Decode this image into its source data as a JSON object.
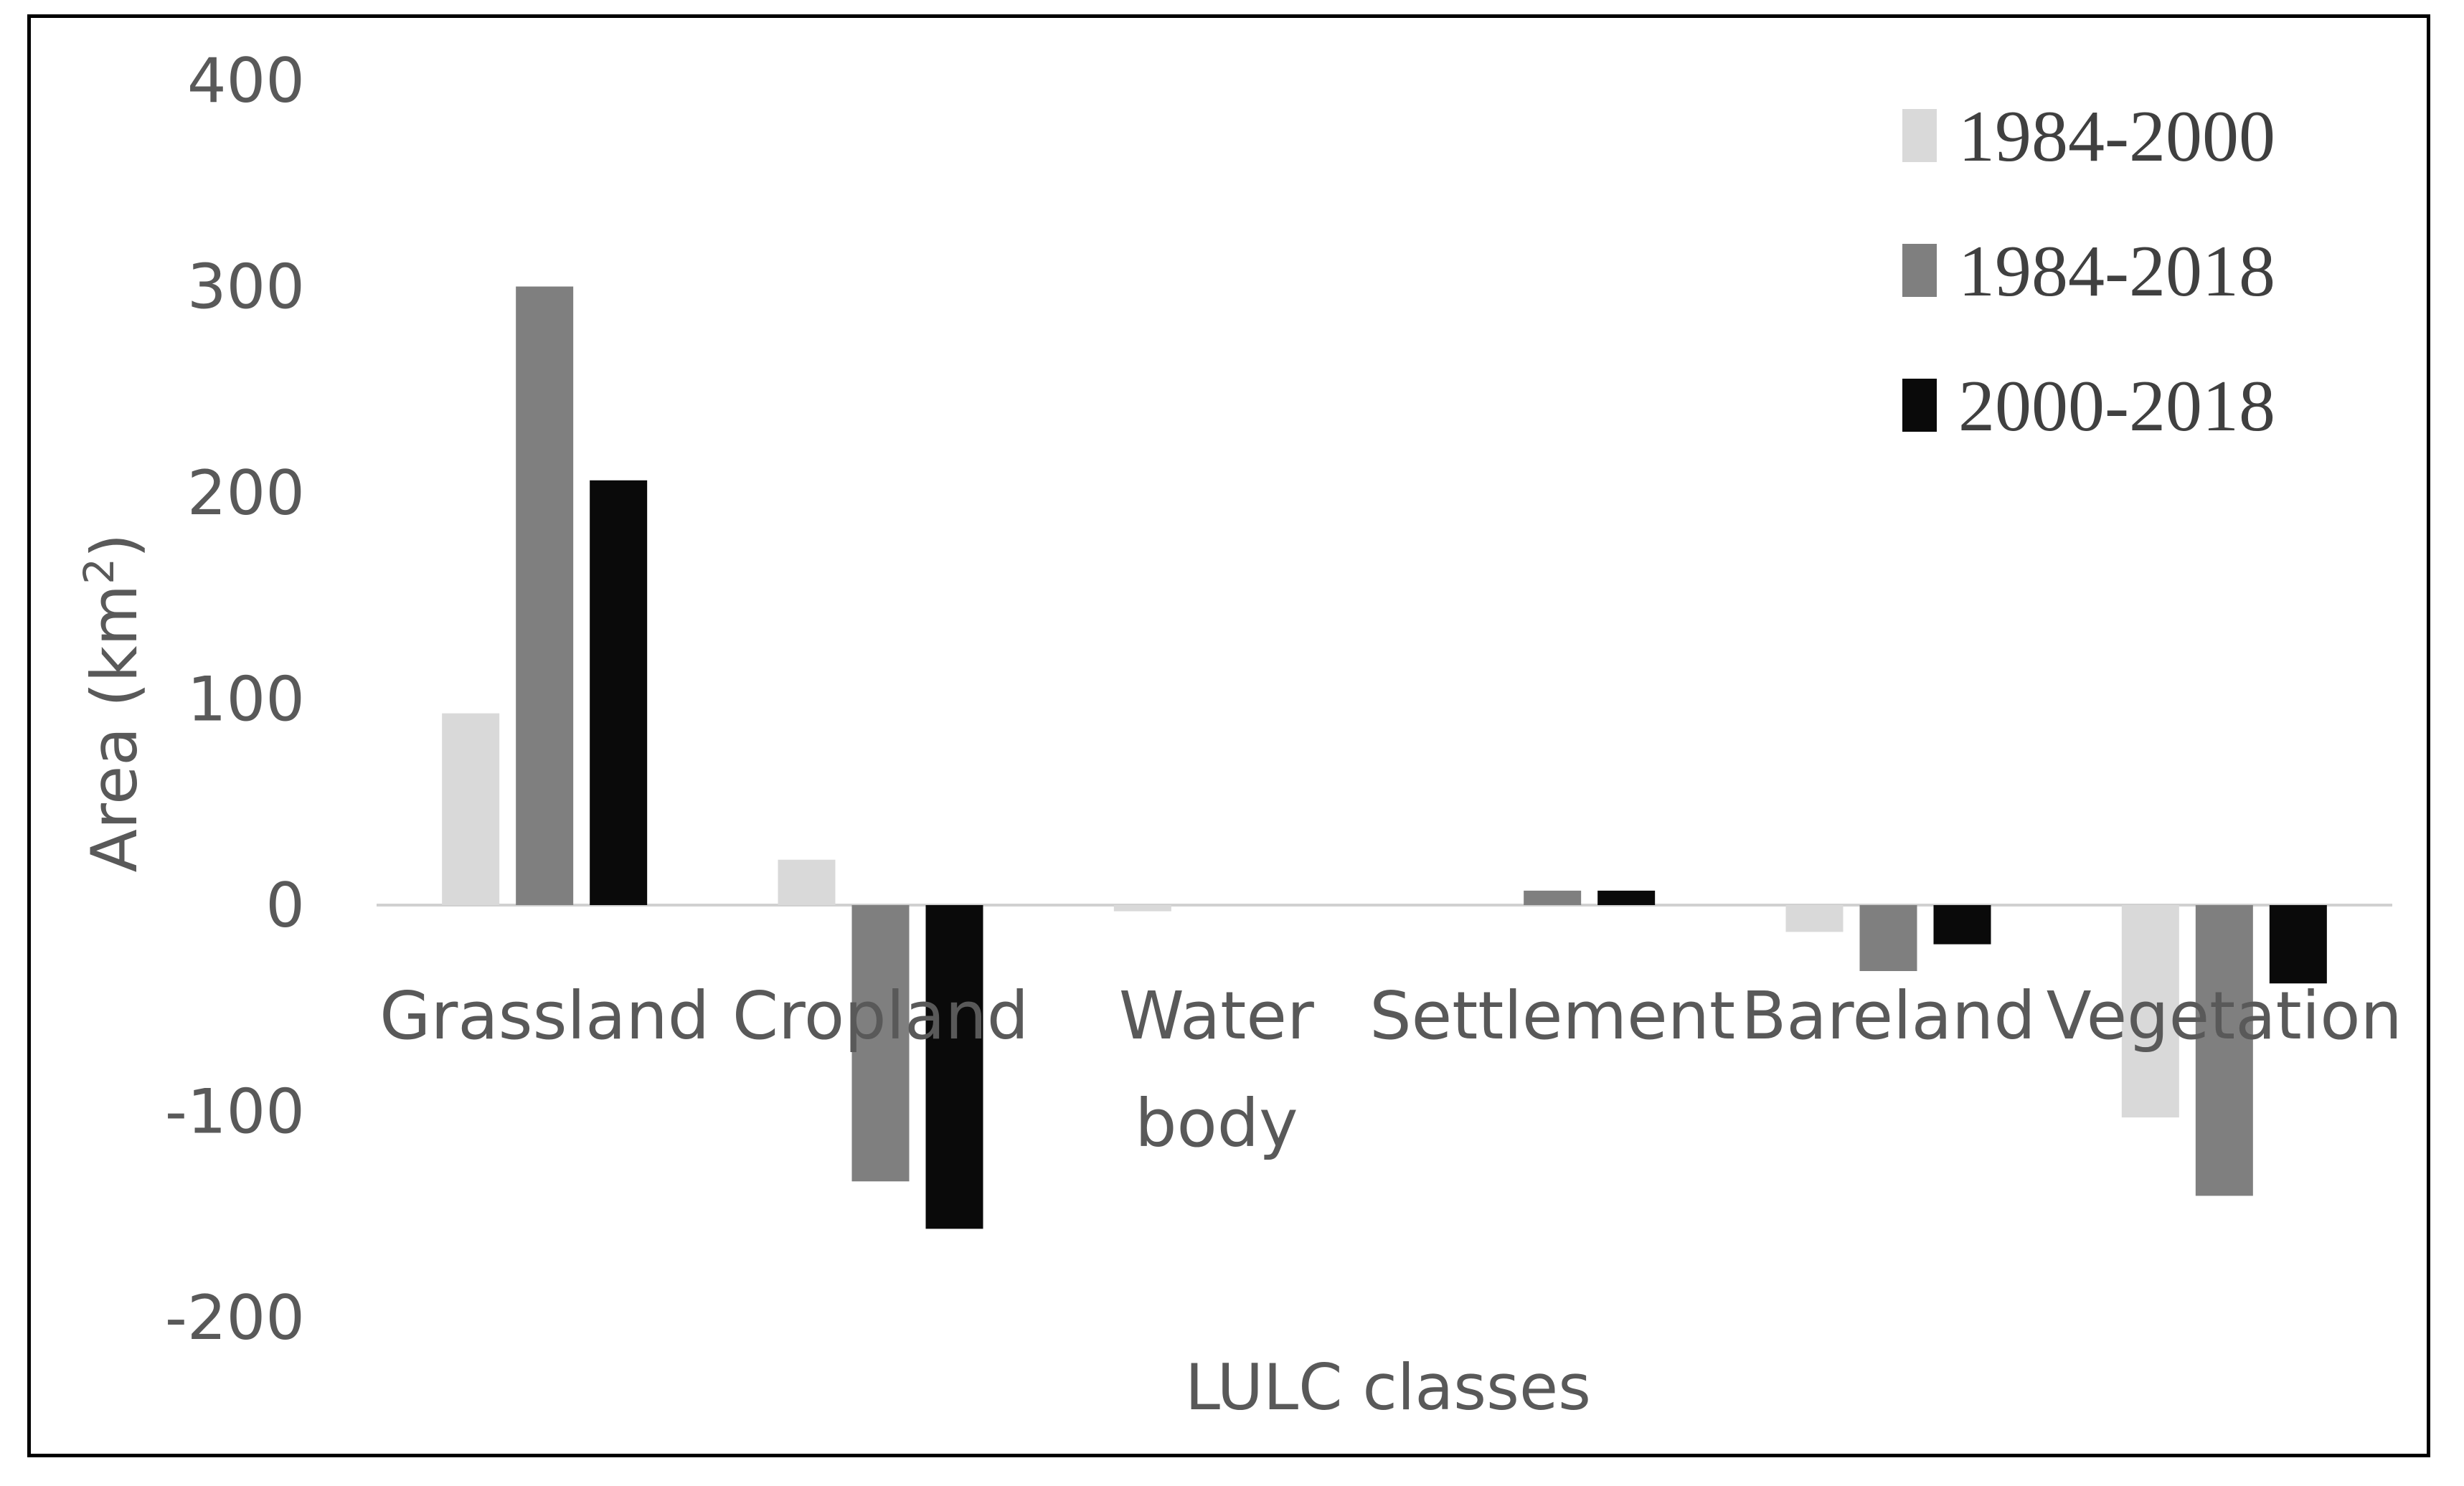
{
  "chart_data": {
    "type": "bar",
    "title": "",
    "xlabel": "LULC classes",
    "ylabel_main": "Area (km",
    "ylabel_sup": "2",
    "ylabel_close": ")",
    "ylim": [
      -200,
      400
    ],
    "yticks": [
      400,
      300,
      200,
      100,
      0,
      -100,
      -200
    ],
    "ytick_labels": [
      "400",
      "300",
      "200",
      "100",
      "0",
      "-100",
      "-200"
    ],
    "categories": [
      {
        "lines": [
          "Grassland"
        ]
      },
      {
        "lines": [
          "Cropland"
        ]
      },
      {
        "lines": [
          "Water",
          "body"
        ]
      },
      {
        "lines": [
          "Settlement"
        ]
      },
      {
        "lines": [
          "Bareland"
        ]
      },
      {
        "lines": [
          "Vegetation"
        ]
      }
    ],
    "series": [
      {
        "name": "1984-2000",
        "color": "#d9d9d9",
        "values": [
          93,
          22,
          -3,
          0,
          -13,
          -103
        ]
      },
      {
        "name": "1984-2018",
        "color": "#7f7f7f",
        "values": [
          300,
          -134,
          0,
          7,
          -32,
          -141
        ]
      },
      {
        "name": "2000-2018",
        "color": "#0a0a0a",
        "values": [
          206,
          -157,
          0,
          7,
          -19,
          -38
        ]
      }
    ],
    "grid": false,
    "legend_position": "top-right"
  }
}
